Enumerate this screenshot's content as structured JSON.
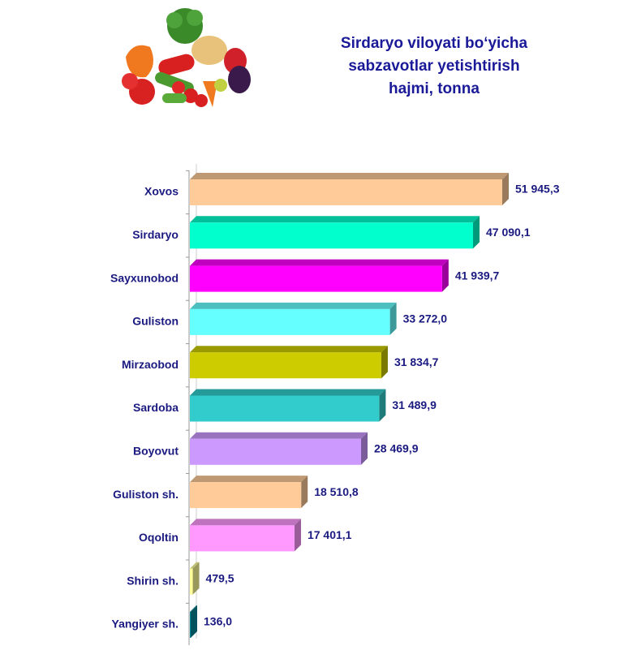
{
  "chart_data": {
    "type": "bar",
    "orientation": "horizontal",
    "title": "Sirdaryo viloyati bo‘yicha\nsabzavotlar yetishtirish\nhajmi, tonna",
    "categories": [
      "Xovos",
      "Sirdaryo",
      "Sayxunobod",
      "Guliston",
      "Mirzaobod",
      "Sardoba",
      "Boyovut",
      "Guliston sh.",
      "Oqoltin",
      "Shirin sh.",
      "Yangiyer sh."
    ],
    "values": [
      51945.3,
      47090.1,
      41939.7,
      33272.0,
      31834.7,
      31489.9,
      28469.9,
      18510.8,
      17401.1,
      479.5,
      136.0
    ],
    "value_labels": [
      "51 945,3",
      "47 090,1",
      "41 939,7",
      "33 272,0",
      "31 834,7",
      "31 489,9",
      "28 469,9",
      "18 510,8",
      "17 401,1",
      "479,5",
      "136,0"
    ],
    "colors": [
      "#ffcc99",
      "#00ffcc",
      "#ff00ff",
      "#66ffff",
      "#cccc00",
      "#33cccc",
      "#cc99ff",
      "#ffcc99",
      "#ff99ff",
      "#ffff99",
      "#008b99"
    ]
  }
}
